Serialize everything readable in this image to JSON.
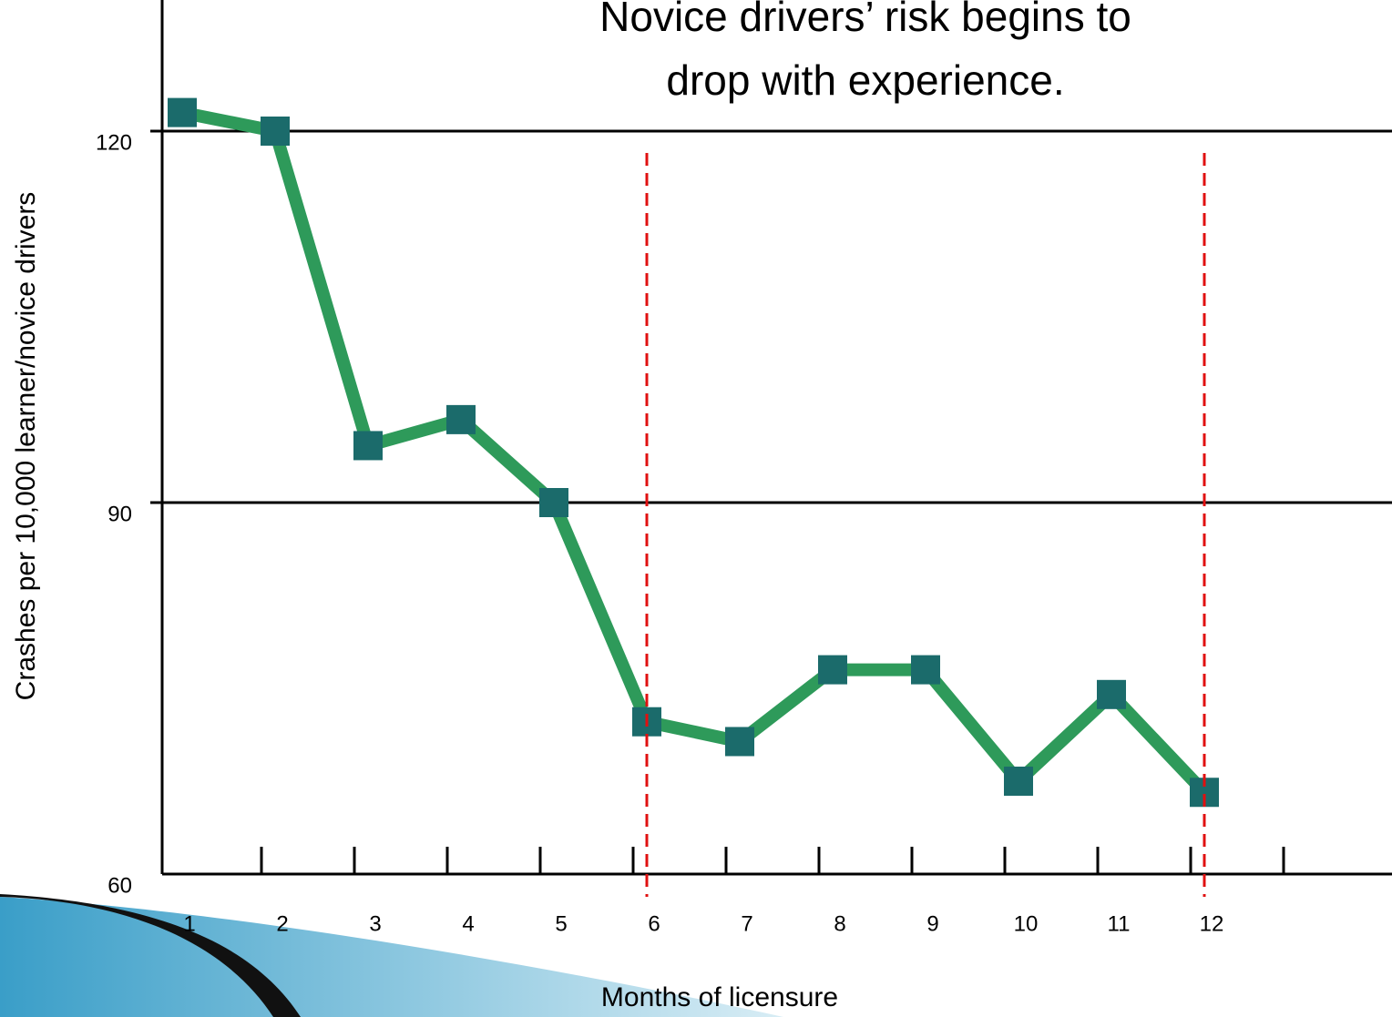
{
  "chart_data": {
    "type": "line",
    "title": [
      "Novice drivers’ risk begins to",
      "drop with experience."
    ],
    "y_label": "Crashes per 10,000 learner/novice drivers",
    "x_label": "Months of licensure",
    "categories": [
      "1",
      "2",
      "3",
      "4",
      "5",
      "6",
      "7",
      "8",
      "9",
      "10",
      "11",
      "12"
    ],
    "series": [
      {
        "name": "Crashes",
        "color": "#2e9a5a",
        "marker_color": "#1b6b6b",
        "values": [
          121.5,
          120,
          94.6,
          96.7,
          90,
          72.3,
          70.7,
          76.5,
          76.5,
          67.5,
          74.5,
          66.6
        ]
      }
    ],
    "ylim": [
      60,
      130
    ],
    "yticks": [
      60,
      90,
      120
    ],
    "grid": true,
    "reference_lines": {
      "color": "#e01010",
      "at": [
        "6",
        "12"
      ]
    }
  }
}
